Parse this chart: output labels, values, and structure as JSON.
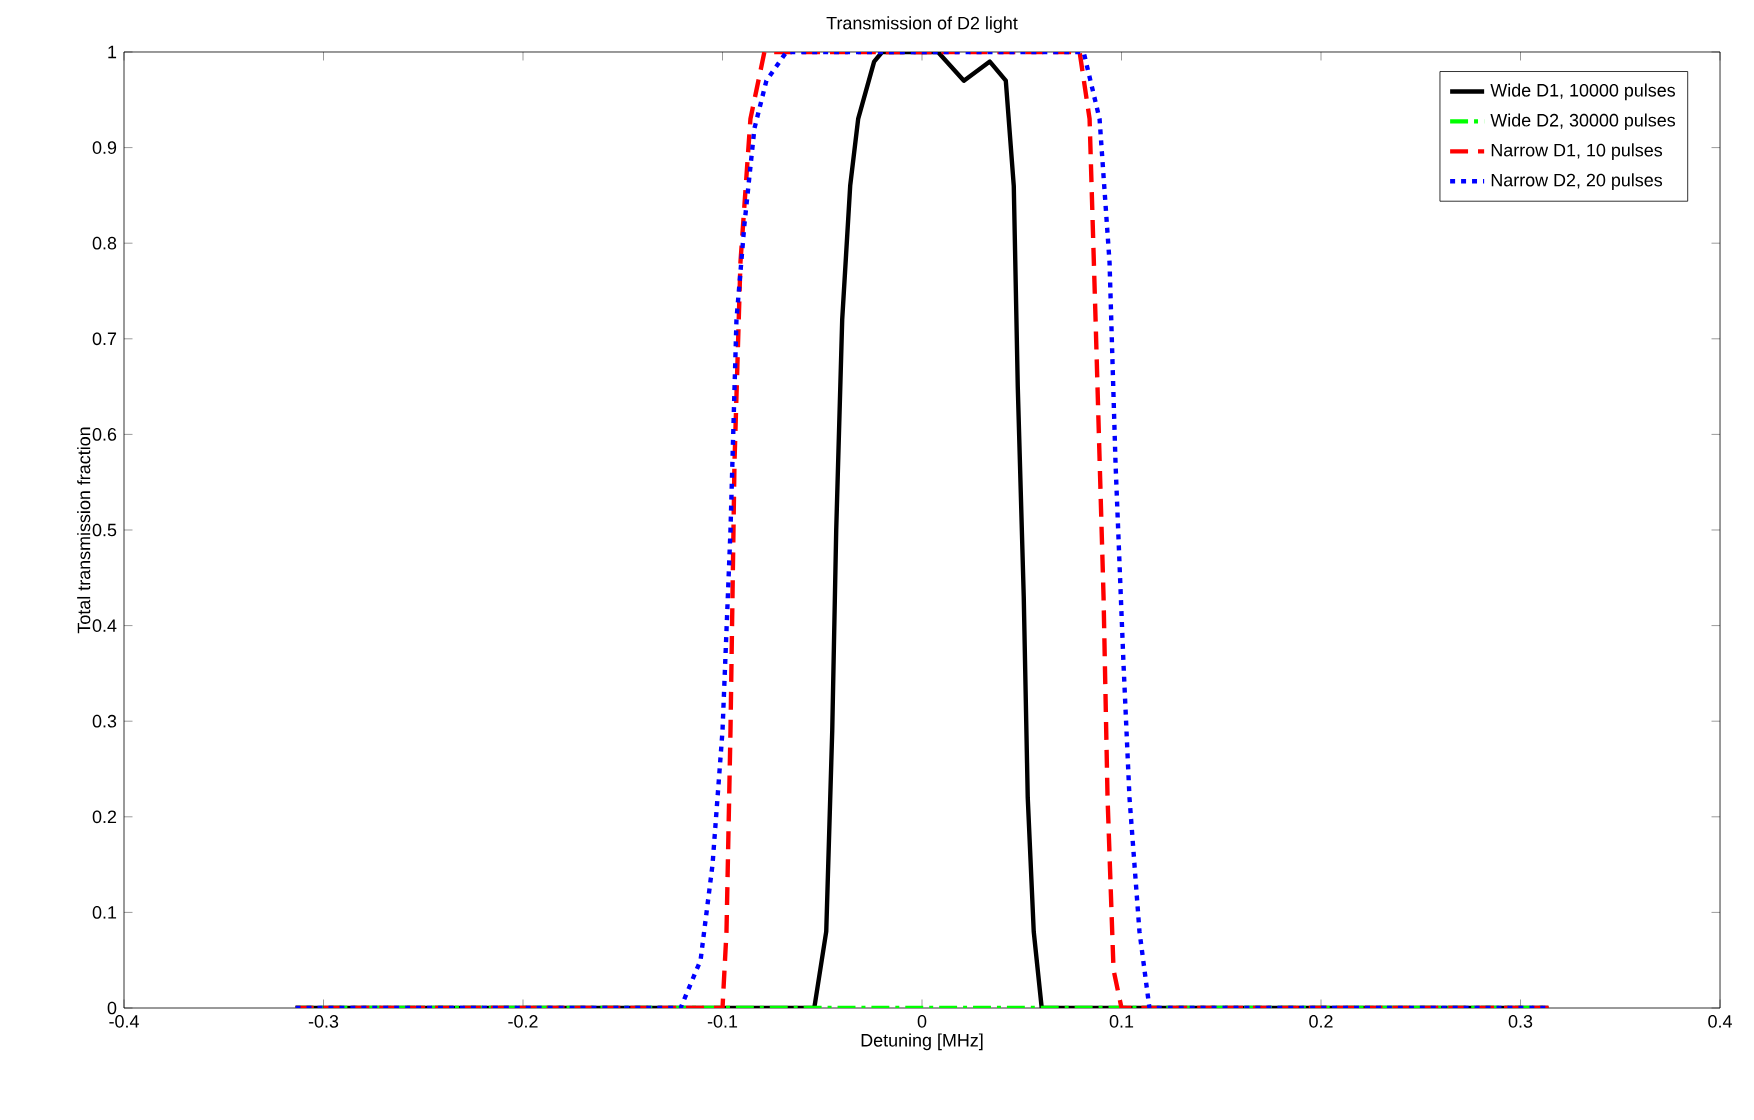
{
  "chart_data": {
    "type": "line",
    "title": "Transmission of D2 light",
    "xlabel": "Detuning [MHz]",
    "ylabel": "Total transmission fraction",
    "xlim": [
      -0.4,
      0.4
    ],
    "ylim": [
      0,
      1
    ],
    "xticks": [
      -0.4,
      -0.3,
      -0.2,
      -0.1,
      0,
      0.1,
      0.2,
      0.3,
      0.4
    ],
    "yticks": [
      0,
      0.1,
      0.2,
      0.3,
      0.4,
      0.5,
      0.6,
      0.7,
      0.8,
      0.9,
      1
    ],
    "grid": false,
    "legend": "top right",
    "series": [
      {
        "name": "Wide D1, 10000 pulses",
        "color": "#000000",
        "line_style": "solid",
        "x": [
          -0.314,
          -0.054,
          -0.048,
          -0.045,
          -0.043,
          -0.04,
          -0.036,
          -0.032,
          -0.024,
          -0.02,
          0.008,
          0.021,
          0.034,
          0.042,
          0.046,
          0.048,
          0.051,
          0.053,
          0.056,
          0.06,
          0.314
        ],
        "values": [
          0,
          0,
          0.08,
          0.29,
          0.5,
          0.72,
          0.86,
          0.93,
          0.99,
          1,
          1,
          0.97,
          0.99,
          0.97,
          0.86,
          0.65,
          0.43,
          0.22,
          0.08,
          0,
          0
        ]
      },
      {
        "name": "Wide D2, 30000 pulses",
        "color": "#00ff00",
        "line_style": "dashdot",
        "x": [
          -0.314,
          0.314
        ],
        "values": [
          0,
          0
        ]
      },
      {
        "name": "Narrow D1, 10 pulses",
        "color": "#ff0000",
        "line_style": "dashed",
        "x": [
          -0.314,
          -0.1,
          -0.098,
          -0.096,
          -0.094,
          -0.091,
          -0.086,
          -0.079,
          -0.074,
          0.079,
          0.084,
          0.087,
          0.091,
          0.093,
          0.096,
          0.1,
          0.314
        ],
        "values": [
          0,
          0,
          0.08,
          0.29,
          0.57,
          0.78,
          0.93,
          1,
          1,
          1,
          0.93,
          0.72,
          0.43,
          0.22,
          0.04,
          0,
          0
        ]
      },
      {
        "name": "Narrow D2, 20 pulses",
        "color": "#0000ff",
        "line_style": "dotted",
        "x": [
          -0.314,
          -0.121,
          -0.111,
          -0.105,
          -0.1,
          -0.096,
          -0.093,
          -0.089,
          -0.084,
          -0.078,
          -0.068,
          0.081,
          0.089,
          0.094,
          0.097,
          0.101,
          0.104,
          0.109,
          0.114,
          0.314
        ],
        "values": [
          0,
          0,
          0.05,
          0.15,
          0.29,
          0.5,
          0.72,
          0.82,
          0.92,
          0.97,
          1,
          1,
          0.93,
          0.78,
          0.57,
          0.36,
          0.22,
          0.08,
          0,
          0
        ]
      }
    ]
  }
}
